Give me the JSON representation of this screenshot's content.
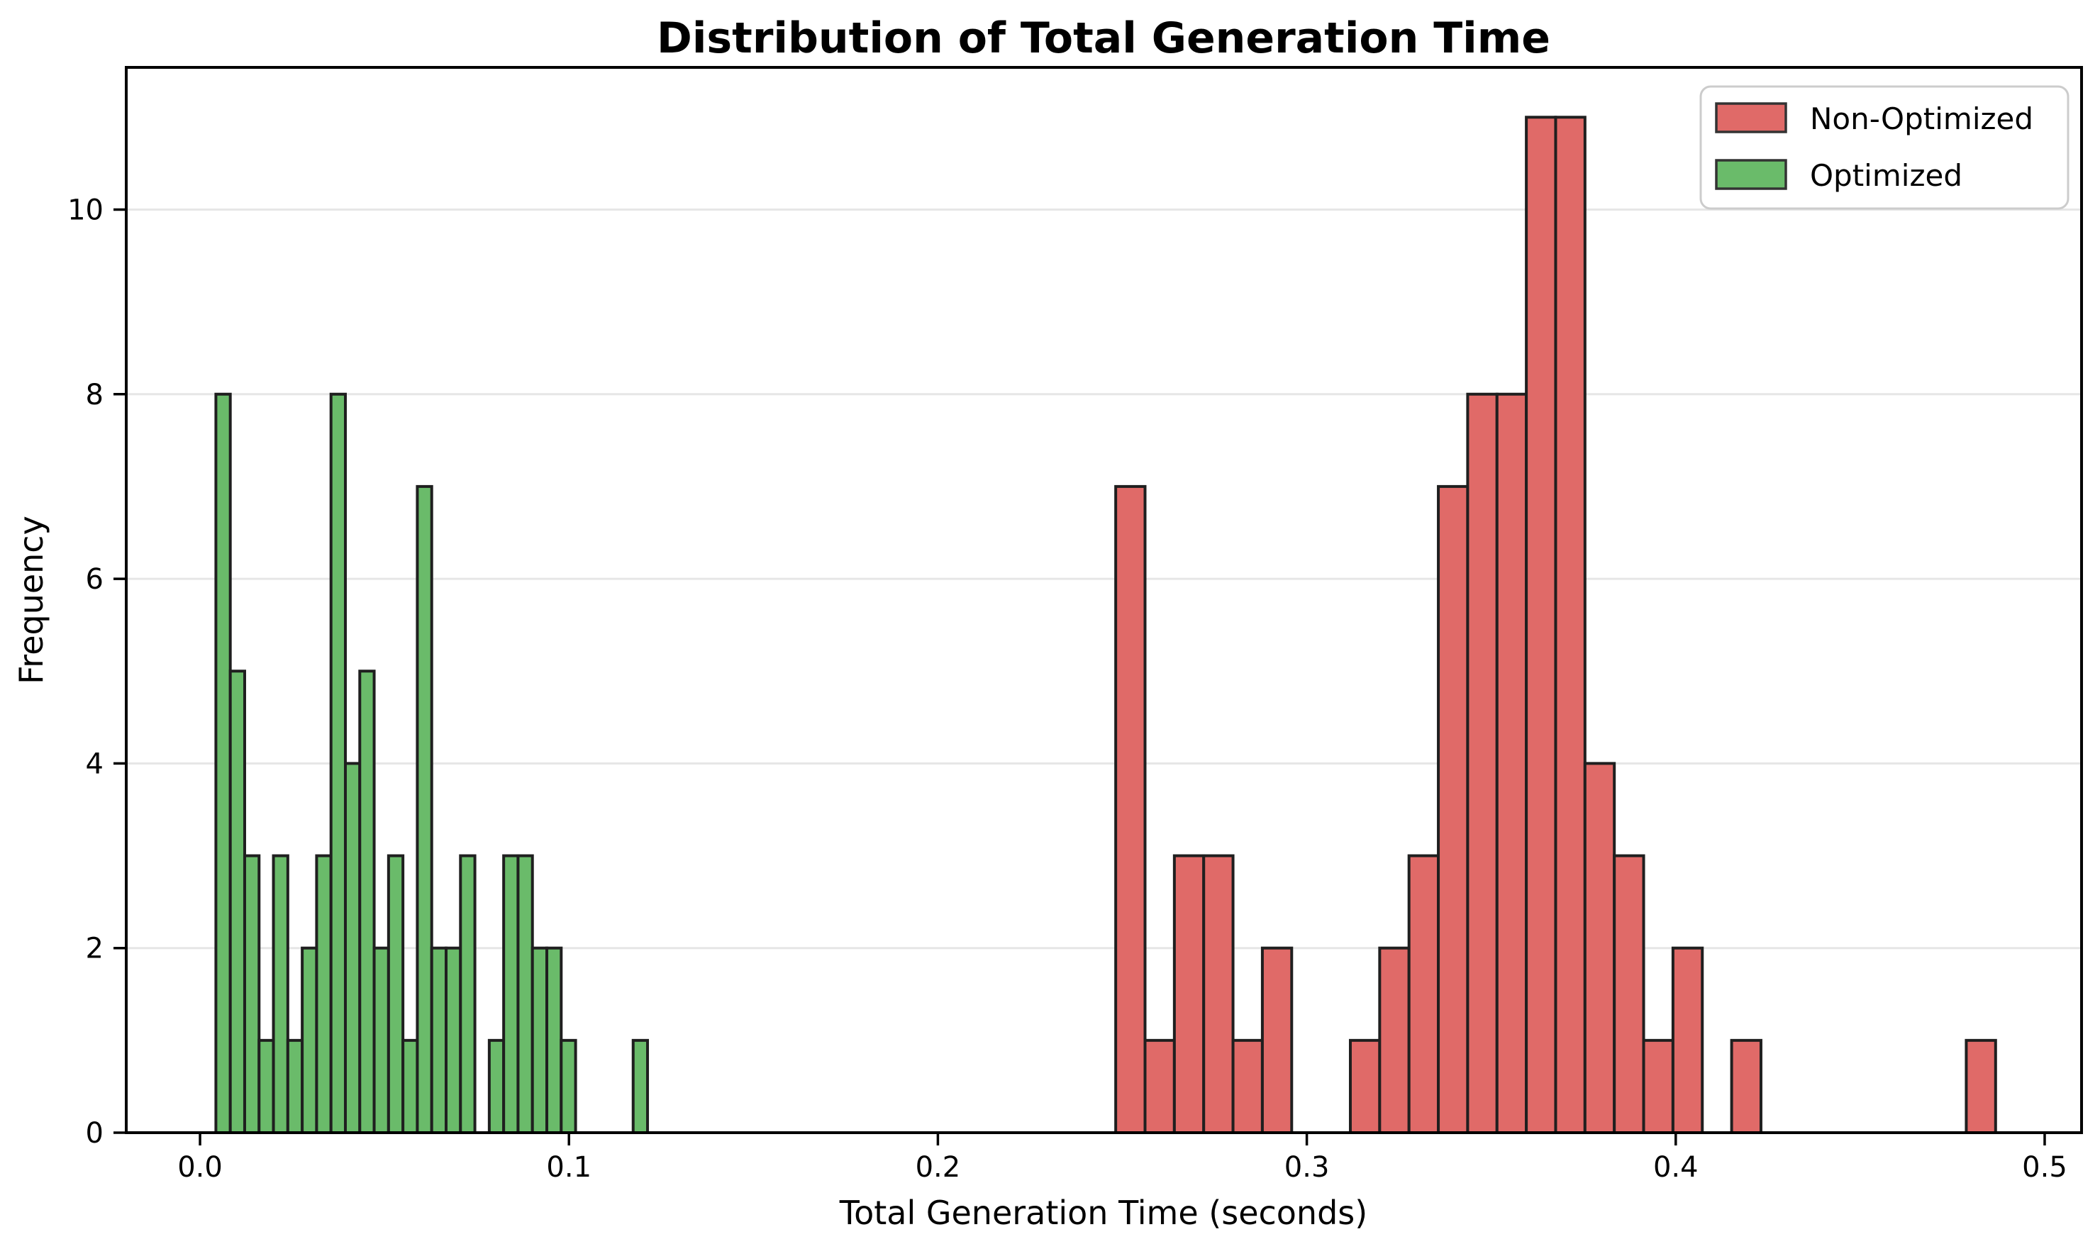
{
  "title": "Distribution of Total Generation Time",
  "axes": {
    "xlabel": "Total Generation Time (seconds)",
    "ylabel": "Frequency",
    "xtick_labels": [
      "0.0",
      "0.1",
      "0.2",
      "0.3",
      "0.4",
      "0.5"
    ],
    "xtick_values": [
      0.0,
      0.1,
      0.2,
      0.3,
      0.4,
      0.5
    ],
    "ytick_labels": [
      "0",
      "2",
      "4",
      "6",
      "8",
      "10"
    ],
    "ytick_values": [
      0,
      2,
      4,
      6,
      8,
      10
    ]
  },
  "legend": {
    "items": [
      {
        "label": "Non-Optimized",
        "color": "#e06a68",
        "edge": "#333333"
      },
      {
        "label": "Optimized",
        "color": "#6abb6a",
        "edge": "#333333"
      }
    ]
  },
  "colors": {
    "bar_edge": "#1f1f1f",
    "grid": "#e6e6e6",
    "spine": "#000000",
    "background": "#ffffff",
    "legend_border": "#cccccc"
  },
  "chart_data": {
    "type": "bar",
    "subtype": "histogram",
    "title": "Distribution of Total Generation Time",
    "xlabel": "Total Generation Time (seconds)",
    "ylabel": "Frequency",
    "xlim": [
      -0.02,
      0.51
    ],
    "ylim": [
      0,
      11.54
    ],
    "grid": "horizontal-only",
    "legend_position": "upper-right",
    "series": [
      {
        "name": "Non-Optimized",
        "fill": "#e06a68",
        "bin_start": 0.2482,
        "bin_width": 0.00795,
        "counts": [
          7,
          1,
          3,
          3,
          1,
          2,
          0,
          0,
          1,
          2,
          3,
          7,
          8,
          8,
          11,
          11,
          4,
          3,
          1,
          2,
          0,
          1,
          0,
          0,
          0,
          0,
          0,
          0,
          0,
          1
        ]
      },
      {
        "name": "Optimized",
        "fill": "#6abb6a",
        "bin_start": 0.0043,
        "bin_width": 0.0039,
        "counts": [
          8,
          5,
          3,
          1,
          3,
          1,
          2,
          3,
          8,
          4,
          5,
          2,
          3,
          1,
          7,
          2,
          2,
          3,
          0,
          1,
          3,
          3,
          2,
          2,
          1,
          0,
          0,
          0,
          0,
          1
        ]
      }
    ]
  }
}
